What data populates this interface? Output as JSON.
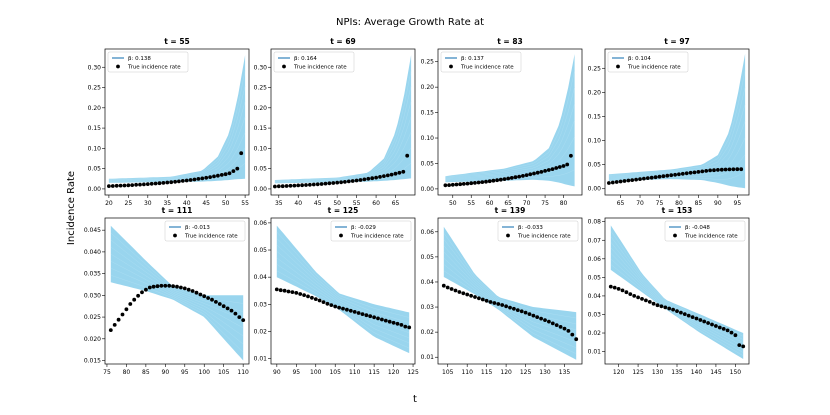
{
  "figure": {
    "title": "NPIs: Average Growth Rate at",
    "xlabel": "t",
    "ylabel": "Incidence Rate"
  },
  "colors": {
    "band": "#87ceeb",
    "legend_line": "#1f77b4",
    "points": "#000000"
  },
  "chart_data": [
    {
      "type": "line",
      "title": "t = 55",
      "beta_label": "β: 0.138",
      "obs_label": "True incidence rate",
      "xlim": [
        19,
        56
      ],
      "ylim": [
        -0.015,
        0.345
      ],
      "xticks": [
        20,
        25,
        30,
        35,
        40,
        45,
        50,
        55
      ],
      "yticks": [
        0.0,
        0.05,
        0.1,
        0.15,
        0.2,
        0.25,
        0.3
      ],
      "ytick_labels": [
        "0.00",
        "0.05",
        "0.10",
        "0.15",
        "0.20",
        "0.25",
        "0.30"
      ],
      "band_x": [
        20,
        36,
        44,
        48,
        51,
        53,
        55
      ],
      "band_upper": [
        0.025,
        0.03,
        0.045,
        0.08,
        0.14,
        0.22,
        0.33
      ],
      "band_lower": [
        0.015,
        0.017,
        0.018,
        0.02,
        0.022,
        0.024,
        0.025
      ],
      "true_x": [
        20,
        21,
        22,
        23,
        24,
        25,
        26,
        27,
        28,
        29,
        30,
        31,
        32,
        33,
        34,
        35,
        36,
        37,
        38,
        39,
        40,
        41,
        42,
        43,
        44,
        45,
        46,
        47,
        48,
        49,
        50,
        51,
        52,
        53,
        54
      ],
      "true_y": [
        0.0069,
        0.0073,
        0.0077,
        0.0081,
        0.0085,
        0.009,
        0.0095,
        0.0101,
        0.0106,
        0.0112,
        0.0119,
        0.0126,
        0.0133,
        0.0141,
        0.0149,
        0.0157,
        0.0166,
        0.0176,
        0.0186,
        0.0197,
        0.0208,
        0.022,
        0.0233,
        0.0246,
        0.026,
        0.0275,
        0.0291,
        0.0308,
        0.0326,
        0.0345,
        0.0364,
        0.0385,
        0.044,
        0.05,
        0.088
      ]
    },
    {
      "type": "line",
      "title": "t = 69",
      "beta_label": "β: 0.164",
      "obs_label": "True incidence rate",
      "xlim": [
        33,
        70
      ],
      "ylim": [
        -0.015,
        0.345
      ],
      "xticks": [
        35,
        40,
        45,
        50,
        55,
        60,
        65
      ],
      "yticks": [
        0.0,
        0.05,
        0.1,
        0.15,
        0.2,
        0.25,
        0.3
      ],
      "ytick_labels": [
        "0.00",
        "0.05",
        "0.10",
        "0.15",
        "0.20",
        "0.25",
        "0.30"
      ],
      "band_x": [
        34,
        50,
        58,
        62,
        65,
        67,
        69
      ],
      "band_upper": [
        0.022,
        0.028,
        0.04,
        0.075,
        0.14,
        0.22,
        0.33
      ],
      "band_lower": [
        0.014,
        0.016,
        0.018,
        0.02,
        0.022,
        0.024,
        0.026
      ],
      "true_x": [
        34,
        35,
        36,
        37,
        38,
        39,
        40,
        41,
        42,
        43,
        44,
        45,
        46,
        47,
        48,
        49,
        50,
        51,
        52,
        53,
        54,
        55,
        56,
        57,
        58,
        59,
        60,
        61,
        62,
        63,
        64,
        65,
        66,
        67,
        68
      ],
      "true_y": [
        0.006,
        0.0064,
        0.0068,
        0.0072,
        0.0076,
        0.0081,
        0.0086,
        0.0091,
        0.0097,
        0.0102,
        0.0109,
        0.0115,
        0.0122,
        0.013,
        0.0138,
        0.0146,
        0.0155,
        0.0164,
        0.0174,
        0.0185,
        0.0196,
        0.0208,
        0.0221,
        0.0234,
        0.0249,
        0.0264,
        0.028,
        0.0297,
        0.0315,
        0.0334,
        0.0354,
        0.0376,
        0.0398,
        0.0422,
        0.082
      ]
    },
    {
      "type": "line",
      "title": "t = 83",
      "beta_label": "β: 0.137",
      "obs_label": "True incidence rate",
      "xlim": [
        46,
        85
      ],
      "ylim": [
        -0.012,
        0.275
      ],
      "xticks": [
        50,
        55,
        60,
        65,
        70,
        75,
        80
      ],
      "yticks": [
        0.0,
        0.05,
        0.1,
        0.15,
        0.2,
        0.25
      ],
      "ytick_labels": [
        "0.00",
        "0.05",
        "0.10",
        "0.15",
        "0.20",
        "0.25"
      ],
      "band_x": [
        48,
        64,
        72,
        76,
        79,
        81,
        83
      ],
      "band_upper": [
        0.025,
        0.04,
        0.055,
        0.08,
        0.13,
        0.19,
        0.265
      ],
      "band_lower": [
        0.013,
        0.016,
        0.018,
        0.016,
        0.012,
        0.008,
        0.005
      ],
      "true_x": [
        48,
        49,
        50,
        51,
        52,
        53,
        54,
        55,
        56,
        57,
        58,
        59,
        60,
        61,
        62,
        63,
        64,
        65,
        66,
        67,
        68,
        69,
        70,
        71,
        72,
        73,
        74,
        75,
        76,
        77,
        78,
        79,
        80,
        81,
        82
      ],
      "true_y": [
        0.007,
        0.0075,
        0.008,
        0.0086,
        0.0092,
        0.0098,
        0.0104,
        0.0111,
        0.0118,
        0.0126,
        0.0134,
        0.0142,
        0.0151,
        0.0161,
        0.0171,
        0.0181,
        0.0192,
        0.0204,
        0.0216,
        0.0229,
        0.0242,
        0.0256,
        0.0271,
        0.0286,
        0.0302,
        0.0318,
        0.0335,
        0.0353,
        0.0371,
        0.039,
        0.041,
        0.043,
        0.045,
        0.048,
        0.065
      ]
    },
    {
      "type": "line",
      "title": "t = 97",
      "beta_label": "β: 0.104",
      "obs_label": "True incidence rate",
      "xlim": [
        61,
        98
      ],
      "ylim": [
        -0.013,
        0.29
      ],
      "xticks": [
        65,
        70,
        75,
        80,
        85,
        90,
        95
      ],
      "yticks": [
        0.0,
        0.05,
        0.1,
        0.15,
        0.2,
        0.25
      ],
      "ytick_labels": [
        "0.00",
        "0.05",
        "0.10",
        "0.15",
        "0.20",
        "0.25"
      ],
      "band_x": [
        62,
        78,
        86,
        90,
        93,
        95,
        97
      ],
      "band_upper": [
        0.03,
        0.04,
        0.05,
        0.07,
        0.12,
        0.19,
        0.28
      ],
      "band_lower": [
        0.016,
        0.02,
        0.018,
        0.012,
        0.006,
        0.003,
        0.001
      ],
      "true_x": [
        62,
        63,
        64,
        65,
        66,
        67,
        68,
        69,
        70,
        71,
        72,
        73,
        74,
        75,
        76,
        77,
        78,
        79,
        80,
        81,
        82,
        83,
        84,
        85,
        86,
        87,
        88,
        89,
        90,
        91,
        92,
        93,
        94,
        95,
        96
      ],
      "true_y": [
        0.012,
        0.013,
        0.014,
        0.015,
        0.016,
        0.017,
        0.018,
        0.019,
        0.02,
        0.021,
        0.022,
        0.023,
        0.024,
        0.025,
        0.026,
        0.027,
        0.028,
        0.029,
        0.03,
        0.031,
        0.032,
        0.033,
        0.034,
        0.035,
        0.036,
        0.037,
        0.038,
        0.0385,
        0.039,
        0.0395,
        0.04,
        0.0402,
        0.0404,
        0.0405,
        0.0406
      ]
    },
    {
      "type": "line",
      "title": "t = 111",
      "beta_label": "β: -0.013",
      "obs_label": "True incidence rate",
      "xlim": [
        74.5,
        111.5
      ],
      "ylim": [
        0.0142,
        0.0478
      ],
      "xticks": [
        75,
        80,
        85,
        90,
        95,
        100,
        105,
        110
      ],
      "yticks": [
        0.015,
        0.02,
        0.025,
        0.03,
        0.035,
        0.04,
        0.045
      ],
      "ytick_labels": [
        "0.015",
        "0.020",
        "0.025",
        "0.030",
        "0.035",
        "0.040",
        "0.045"
      ],
      "band_x": [
        76,
        85,
        92,
        100,
        110
      ],
      "band_upper": [
        0.046,
        0.038,
        0.032,
        0.03,
        0.03
      ],
      "band_lower": [
        0.033,
        0.031,
        0.029,
        0.025,
        0.015
      ],
      "true_x": [
        76,
        77,
        78,
        79,
        80,
        81,
        82,
        83,
        84,
        85,
        86,
        87,
        88,
        89,
        90,
        91,
        92,
        93,
        94,
        95,
        96,
        97,
        98,
        99,
        100,
        101,
        102,
        103,
        104,
        105,
        106,
        107,
        108,
        109,
        110
      ],
      "true_y": [
        0.022,
        0.0232,
        0.0244,
        0.0256,
        0.0268,
        0.028,
        0.029,
        0.0299,
        0.0307,
        0.0313,
        0.0318,
        0.032,
        0.0321,
        0.0322,
        0.0322,
        0.0322,
        0.0321,
        0.032,
        0.0318,
        0.0316,
        0.0313,
        0.031,
        0.0306,
        0.0302,
        0.0298,
        0.0294,
        0.029,
        0.0285,
        0.028,
        0.0275,
        0.027,
        0.0265,
        0.0258,
        0.025,
        0.0243
      ]
    },
    {
      "type": "line",
      "title": "t = 125",
      "beta_label": "β: -0.029",
      "obs_label": "True incidence rate",
      "xlim": [
        88.5,
        125.5
      ],
      "ylim": [
        0.008,
        0.0618
      ],
      "xticks": [
        90,
        95,
        100,
        105,
        110,
        115,
        120,
        125
      ],
      "yticks": [
        0.01,
        0.02,
        0.03,
        0.04,
        0.05,
        0.06
      ],
      "ytick_labels": [
        "0.01",
        "0.02",
        "0.03",
        "0.04",
        "0.05",
        "0.06"
      ],
      "band_x": [
        90,
        100,
        106,
        115,
        124
      ],
      "band_upper": [
        0.059,
        0.042,
        0.034,
        0.03,
        0.027
      ],
      "band_lower": [
        0.04,
        0.033,
        0.028,
        0.018,
        0.012
      ],
      "true_x": [
        90,
        91,
        92,
        93,
        94,
        95,
        96,
        97,
        98,
        99,
        100,
        101,
        102,
        103,
        104,
        105,
        106,
        107,
        108,
        109,
        110,
        111,
        112,
        113,
        114,
        115,
        116,
        117,
        118,
        119,
        120,
        121,
        122,
        123,
        124
      ],
      "true_y": [
        0.0355,
        0.0352,
        0.035,
        0.0347,
        0.0345,
        0.0342,
        0.0338,
        0.0334,
        0.0329,
        0.0324,
        0.0319,
        0.0314,
        0.0308,
        0.0302,
        0.0297,
        0.0292,
        0.0288,
        0.0284,
        0.028,
        0.0276,
        0.0272,
        0.0268,
        0.0264,
        0.026,
        0.0256,
        0.0252,
        0.0248,
        0.0244,
        0.024,
        0.0236,
        0.0232,
        0.0228,
        0.0224,
        0.0218,
        0.0215
      ]
    },
    {
      "type": "line",
      "title": "t = 139",
      "beta_label": "β: -0.033",
      "obs_label": "True incidence rate",
      "xlim": [
        102.5,
        139.5
      ],
      "ylim": [
        0.0073,
        0.0655
      ],
      "xticks": [
        105,
        110,
        115,
        120,
        125,
        130,
        135
      ],
      "yticks": [
        0.01,
        0.02,
        0.03,
        0.04,
        0.05,
        0.06
      ],
      "ytick_labels": [
        "0.01",
        "0.02",
        "0.03",
        "0.04",
        "0.05",
        "0.06"
      ],
      "band_x": [
        104,
        112,
        118,
        127,
        138
      ],
      "band_upper": [
        0.062,
        0.043,
        0.034,
        0.03,
        0.028
      ],
      "band_lower": [
        0.042,
        0.035,
        0.029,
        0.018,
        0.009
      ],
      "true_x": [
        104,
        105,
        106,
        107,
        108,
        109,
        110,
        111,
        112,
        113,
        114,
        115,
        116,
        117,
        118,
        119,
        120,
        121,
        122,
        123,
        124,
        125,
        126,
        127,
        128,
        129,
        130,
        131,
        132,
        133,
        134,
        135,
        136,
        137,
        138
      ],
      "true_y": [
        0.0385,
        0.0378,
        0.0372,
        0.0366,
        0.036,
        0.0355,
        0.035,
        0.0345,
        0.034,
        0.0335,
        0.033,
        0.0325,
        0.032,
        0.0316,
        0.0312,
        0.0308,
        0.0303,
        0.0298,
        0.0293,
        0.0288,
        0.0283,
        0.0278,
        0.0272,
        0.0266,
        0.026,
        0.0254,
        0.0248,
        0.0242,
        0.0235,
        0.0228,
        0.0221,
        0.0214,
        0.0205,
        0.019,
        0.0172
      ]
    },
    {
      "type": "line",
      "title": "t = 153",
      "beta_label": "β: -0.048",
      "obs_label": "True incidence rate",
      "xlim": [
        116.5,
        153.5
      ],
      "ylim": [
        0.0033,
        0.082
      ],
      "xticks": [
        120,
        125,
        130,
        135,
        140,
        145,
        150
      ],
      "yticks": [
        0.01,
        0.02,
        0.03,
        0.04,
        0.05,
        0.06,
        0.07,
        0.08
      ],
      "ytick_labels": [
        "0.01",
        "0.02",
        "0.03",
        "0.04",
        "0.05",
        "0.06",
        "0.07",
        "0.08"
      ],
      "band_x": [
        118,
        126,
        132,
        141,
        152
      ],
      "band_upper": [
        0.078,
        0.052,
        0.038,
        0.03,
        0.02
      ],
      "band_lower": [
        0.054,
        0.042,
        0.033,
        0.02,
        0.006
      ],
      "true_x": [
        118,
        119,
        120,
        121,
        122,
        123,
        124,
        125,
        126,
        127,
        128,
        129,
        130,
        131,
        132,
        133,
        134,
        135,
        136,
        137,
        138,
        139,
        140,
        141,
        142,
        143,
        144,
        145,
        146,
        147,
        148,
        149,
        150,
        151,
        152
      ],
      "true_y": [
        0.045,
        0.0445,
        0.0438,
        0.043,
        0.042,
        0.041,
        0.04,
        0.0392,
        0.0384,
        0.0376,
        0.0368,
        0.0358,
        0.035,
        0.0344,
        0.0338,
        0.0332,
        0.0326,
        0.0318,
        0.031,
        0.0302,
        0.0294,
        0.0286,
        0.0278,
        0.027,
        0.0262,
        0.0254,
        0.0246,
        0.0238,
        0.023,
        0.0222,
        0.0214,
        0.0202,
        0.0188,
        0.0135,
        0.0128
      ]
    }
  ]
}
